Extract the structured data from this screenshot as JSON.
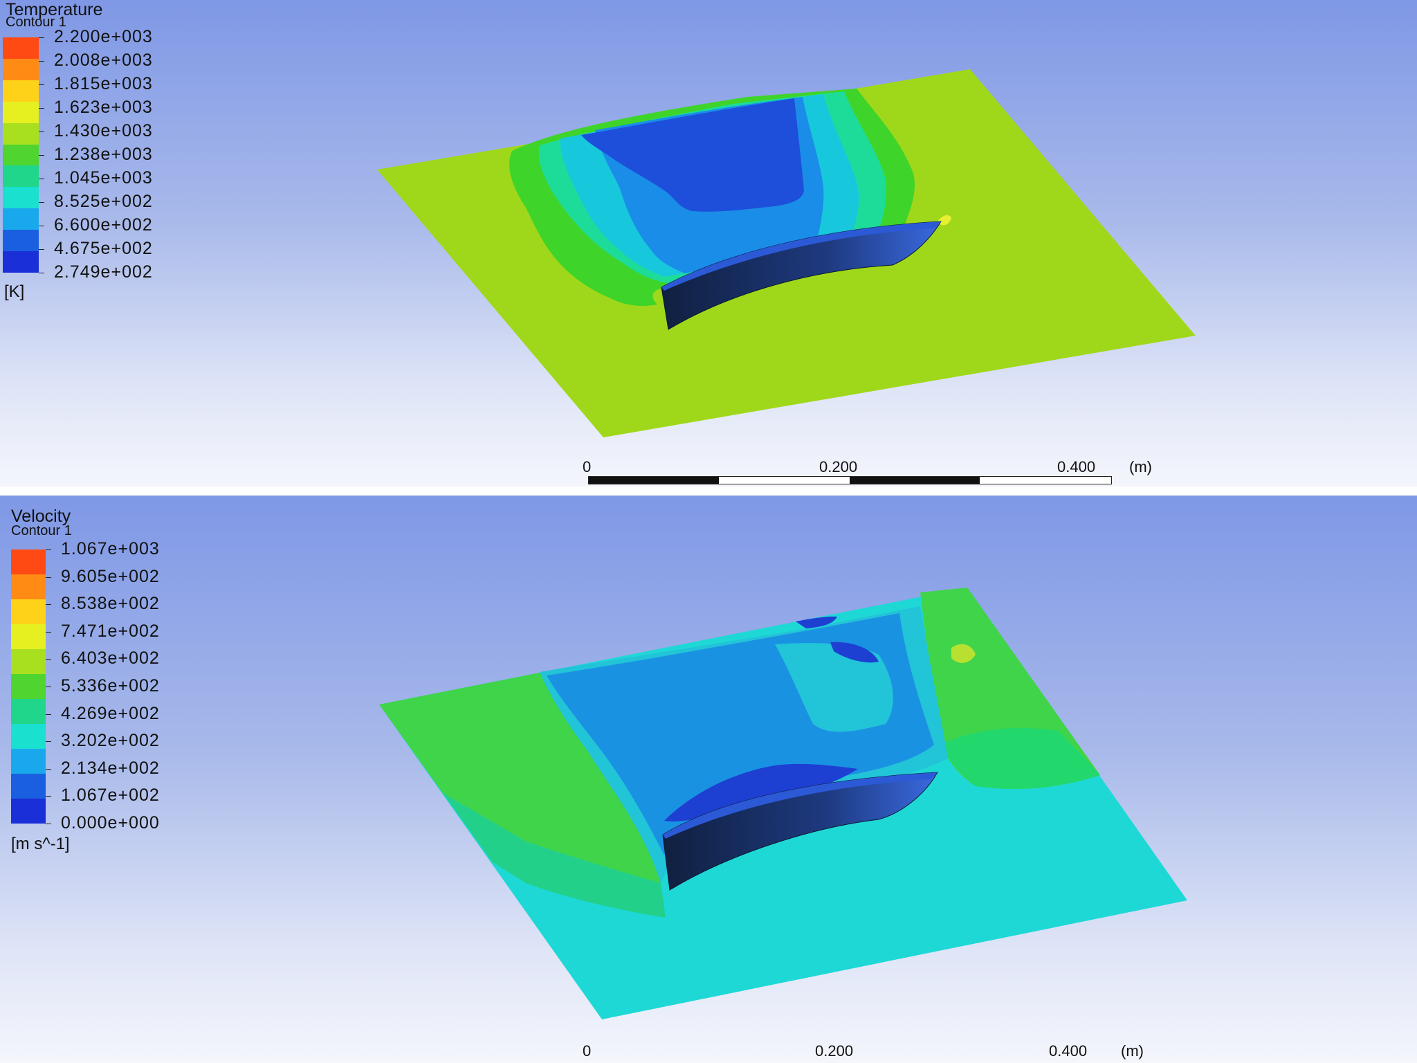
{
  "temperature_panel": {
    "title": "Temperature",
    "subtitle": "Contour 1",
    "unit": "[K]",
    "levels": [
      "2.200e+003",
      "2.008e+003",
      "1.815e+003",
      "1.623e+003",
      "1.430e+003",
      "1.238e+003",
      "1.045e+003",
      "8.525e+002",
      "6.600e+002",
      "4.675e+002",
      "2.749e+002"
    ],
    "colors": [
      "#ff4a14",
      "#ff8a14",
      "#ffd21a",
      "#e6f020",
      "#a8e020",
      "#4fd430",
      "#1fd68a",
      "#1ae0d0",
      "#1aa8ec",
      "#1a5fe0",
      "#1a2fd8"
    ],
    "scale": {
      "labels": [
        "0",
        "0.200",
        "0.400",
        "(m)"
      ]
    }
  },
  "velocity_panel": {
    "title": "Velocity",
    "subtitle": "Contour 1",
    "unit": "[m s^-1]",
    "levels": [
      "1.067e+003",
      "9.605e+002",
      "8.538e+002",
      "7.471e+002",
      "6.403e+002",
      "5.336e+002",
      "4.269e+002",
      "3.202e+002",
      "2.134e+002",
      "1.067e+002",
      "0.000e+000"
    ],
    "colors": [
      "#ff4a14",
      "#ff8a14",
      "#ffd21a",
      "#e6f020",
      "#a8e020",
      "#4fd430",
      "#1fd68a",
      "#1ae0d0",
      "#1aa8ec",
      "#1a5fe0",
      "#1a2fd8"
    ],
    "scale": {
      "labels": [
        "0",
        "0.200",
        "0.400",
        "(m)"
      ]
    }
  }
}
